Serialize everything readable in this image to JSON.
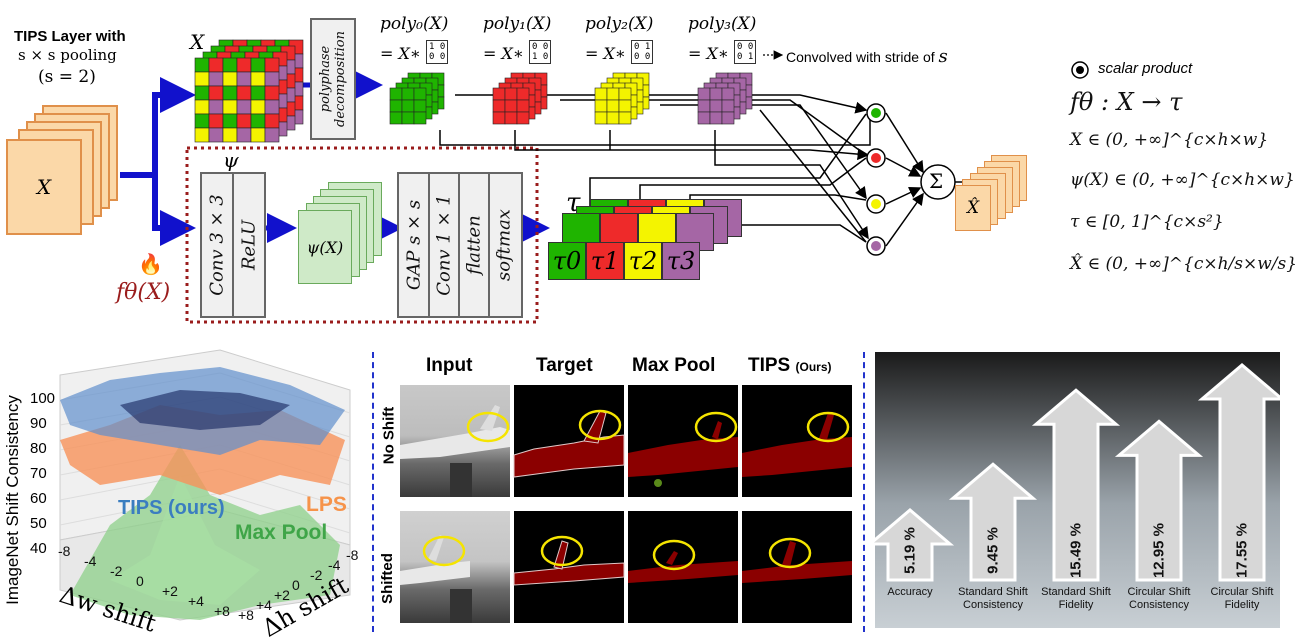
{
  "top": {
    "layer_title_line1": "TIPS Layer with",
    "layer_title_line2": "s × s  pooling",
    "layer_title_line3": "(s = 2)",
    "input_label": "X",
    "grid_label": "X",
    "polyphase_label_line1": "polyphase",
    "polyphase_label_line2": "decomposition",
    "poly_labels": [
      "poly₀(X)",
      "poly₁(X)",
      "poly₂(X)",
      "poly₃(X)"
    ],
    "poly_eq": "= X∗",
    "poly_kernels": [
      [
        "1 0",
        "0 0"
      ],
      [
        "0 0",
        "1 0"
      ],
      [
        "0 1",
        "0 0"
      ],
      [
        "0 0",
        "0 1"
      ]
    ],
    "poly_colors": [
      "#1fb400",
      "#ee2a2a",
      "#f4f400",
      "#a566a5"
    ],
    "convolved_note": "Convolved with stride of",
    "convolved_s": "s",
    "psi_label": "ψ",
    "conv_relu": [
      "Conv  3 × 3",
      "ReLU"
    ],
    "psi_x_label": "ψ(X)",
    "gap_block": [
      "GAP  s × s",
      "Conv  1 × 1",
      "flatten",
      "softmax"
    ],
    "f_theta_label": "fθ(X)",
    "tau_label": "τ",
    "tau_cells": [
      "τ0",
      "τ1",
      "τ2",
      "τ3"
    ],
    "sum_symbol": "Σ",
    "output_label": "X̂",
    "legend_scalar": "scalar product",
    "math": [
      "fθ : X → τ",
      "X ∈ (0, +∞]^{c×h×w}",
      "ψ(X) ∈ (0, +∞]^{c×h×w}",
      "τ ∈ [0, 1]^{c×s²}",
      "X̂ ∈ (0, +∞]^{c×h/s×w/s}"
    ]
  },
  "plot3d": {
    "zlabel": "ImageNet Shift Consistency",
    "zticks": [
      "100",
      "90",
      "80",
      "70",
      "60",
      "50",
      "40"
    ],
    "wlabel": "Δw shift",
    "hlabel": "Δh shift",
    "wticks": [
      "-8",
      "-4",
      "-2",
      "0",
      "+2",
      "+4",
      "+8"
    ],
    "hticks": [
      "+8",
      "+4",
      "+2",
      "0",
      "-2",
      "-4",
      "-8"
    ],
    "legend_tips": "TIPS (ours)",
    "legend_lps": "LPS",
    "legend_maxpool": "Max Pool",
    "colors": {
      "tips": "#3a7dc0",
      "lps": "#f6934a",
      "maxpool": "#3fa548"
    }
  },
  "segmentation": {
    "headers": [
      "Input",
      "Target",
      "Max Pool",
      "TIPS"
    ],
    "tips_suffix": "(Ours)",
    "rows": [
      "No Shift",
      "Shifted"
    ]
  },
  "improvements": {
    "bars": [
      {
        "value": "5.19 %",
        "caption": "Accuracy"
      },
      {
        "value": "9.45 %",
        "caption": "Standard Shift Consistency"
      },
      {
        "value": "15.49 %",
        "caption": "Standard Shift Fidelity"
      },
      {
        "value": "12.95 %",
        "caption": "Circular Shift Consistency"
      },
      {
        "value": "17.55 %",
        "caption": "Circular Shift Fidelity"
      }
    ]
  }
}
